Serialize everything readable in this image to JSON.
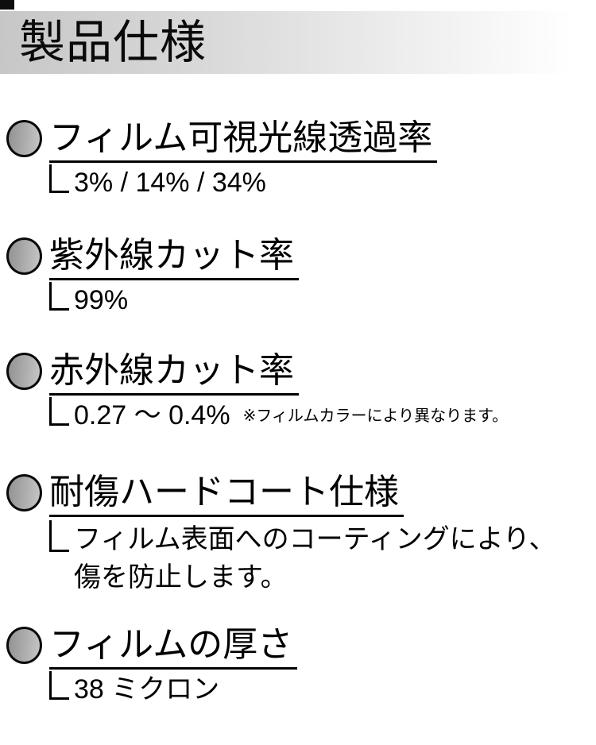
{
  "header": {
    "title": "製品仕様"
  },
  "sections": [
    {
      "heading": "フィルム可視光線透過率",
      "value": "3% / 14% / 34%"
    },
    {
      "heading": "紫外線カット率",
      "value": "99%"
    },
    {
      "heading": "赤外線カット率",
      "value": "0.27 ～ 0.4%",
      "note": "※フィルムカラーにより異なります。"
    },
    {
      "heading": "耐傷ハードコート仕様",
      "value": "フィルム表面へのコーティングにより、\n傷を防止します。"
    },
    {
      "heading": "フィルムの厚さ",
      "value": "38 ミクロン"
    }
  ],
  "colors": {
    "header_gradient_start": "#c7c7c7",
    "header_gradient_end": "#ffffff",
    "bullet_gradient_start": "#929292",
    "bullet_gradient_end": "#c6c6c6",
    "text": "#000000"
  }
}
